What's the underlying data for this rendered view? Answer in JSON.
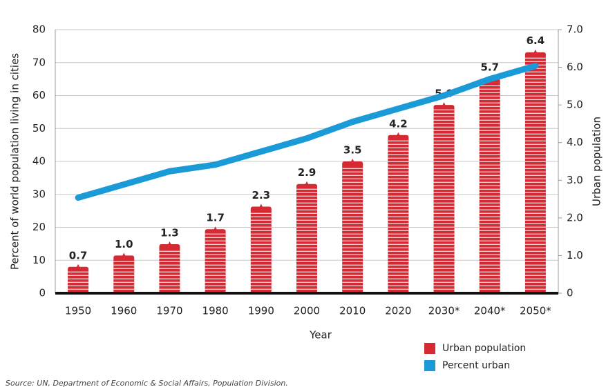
{
  "chart_data": {
    "type": "bar",
    "categories": [
      "1950",
      "1960",
      "1970",
      "1980",
      "1990",
      "2000",
      "2010",
      "2020",
      "2030*",
      "2040*",
      "2050*"
    ],
    "series": [
      {
        "name": "Urban population",
        "type": "bar",
        "axis": "y2",
        "color": "#d42a34",
        "values": [
          0.7,
          1.0,
          1.3,
          1.7,
          2.3,
          2.9,
          3.5,
          4.2,
          5.0,
          5.7,
          6.4
        ],
        "value_labels": [
          "0.7",
          "1.0",
          "1.3",
          "1.7",
          "2.3",
          "2.9",
          "3.5",
          "4.2",
          "5.0",
          "5.7",
          "6.4"
        ]
      },
      {
        "name": "Percent urban",
        "type": "line",
        "color": "#1b9ad8",
        "values": [
          29,
          33,
          37,
          39,
          43,
          47,
          52,
          56,
          60,
          65,
          69
        ]
      }
    ],
    "x_label": "Year",
    "y_label": "Percent of world population living in cities",
    "y2_label": "Urban population",
    "ylim": [
      0,
      80
    ],
    "yticks": [
      0,
      10,
      20,
      30,
      40,
      50,
      60,
      70,
      80
    ],
    "y2lim": [
      0,
      7
    ],
    "y2ticks": [
      0,
      {
        "value": 1,
        "label": "1.0"
      },
      {
        "value": 2,
        "label": "2.0"
      },
      {
        "value": 3,
        "label": "3.0"
      },
      {
        "value": 4,
        "label": "4.0"
      },
      {
        "value": 5,
        "label": "5.0"
      },
      {
        "value": 6,
        "label": "6.0"
      },
      {
        "value": 7,
        "label": "7.0"
      }
    ],
    "grid": true,
    "legend": "bottom-right",
    "source": "Source: UN, Department of Economic & Social Affairs, Population Division."
  }
}
